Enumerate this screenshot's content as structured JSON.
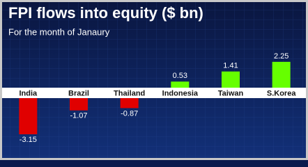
{
  "chart_data": {
    "type": "bar",
    "title": "FPI flows into equity ($ bn)",
    "subtitle": "For the month of Janaury",
    "categories": [
      "India",
      "Brazil",
      "Thailand",
      "Indonesia",
      "Taiwan",
      "S.Korea"
    ],
    "values": [
      -3.15,
      -1.07,
      -0.87,
      0.53,
      1.41,
      2.25
    ],
    "colors": [
      "#e00000",
      "#e00000",
      "#e00000",
      "#66ff00",
      "#66ff00",
      "#66ff00"
    ]
  }
}
